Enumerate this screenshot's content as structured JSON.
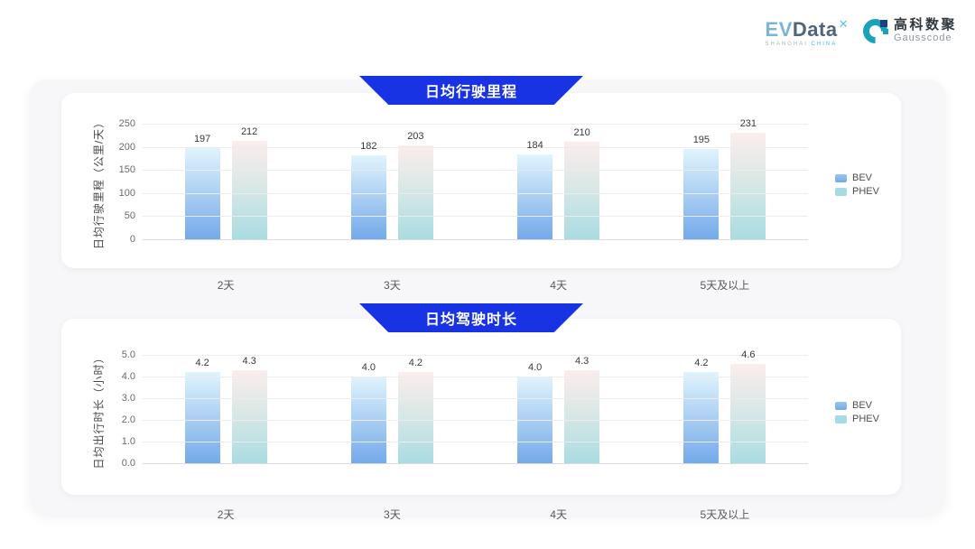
{
  "logo": {
    "evdata_ev": "EV",
    "evdata_data": "Data",
    "evdata_sup": "✕",
    "tagline_left": "SHANGHAI",
    "tagline_right": "CHINA",
    "partner_cn": "高科数聚",
    "partner_en": "Gausscode"
  },
  "colors": {
    "banner": "#1733e4",
    "bev_top": "#e1f4fc",
    "bev_bottom": "#74a9ea",
    "phev_top": "#fbedec",
    "phev_mid": "#dae8e6",
    "phev_bottom": "#a9dce2",
    "legend_bev": "#74a9ea",
    "legend_phev": "#a7dbe3",
    "grid": "#ececee"
  },
  "chart_data": [
    {
      "type": "bar",
      "title": "日均行驶里程",
      "ylabel": "日均行驶里程（公里/天）",
      "xlabel": "",
      "categories": [
        "2天",
        "3天",
        "4天",
        "5天及以上"
      ],
      "series": [
        {
          "name": "BEV",
          "values": [
            197,
            182,
            184,
            195
          ]
        },
        {
          "name": "PHEV",
          "values": [
            212,
            203,
            210,
            231
          ]
        }
      ],
      "ylim": [
        0,
        250
      ],
      "ytick_step": 50,
      "decimals": 0,
      "grid": true,
      "legend_position": "right"
    },
    {
      "type": "bar",
      "title": "日均驾驶时长",
      "ylabel": "日均出行时长（小时）",
      "xlabel": "",
      "categories": [
        "2天",
        "3天",
        "4天",
        "5天及以上"
      ],
      "series": [
        {
          "name": "BEV",
          "values": [
            4.2,
            4.0,
            4.0,
            4.2
          ]
        },
        {
          "name": "PHEV",
          "values": [
            4.3,
            4.2,
            4.3,
            4.6
          ]
        }
      ],
      "ylim": [
        0,
        5.0
      ],
      "ytick_step": 1.0,
      "decimals": 1,
      "grid": true,
      "legend_position": "right"
    }
  ]
}
